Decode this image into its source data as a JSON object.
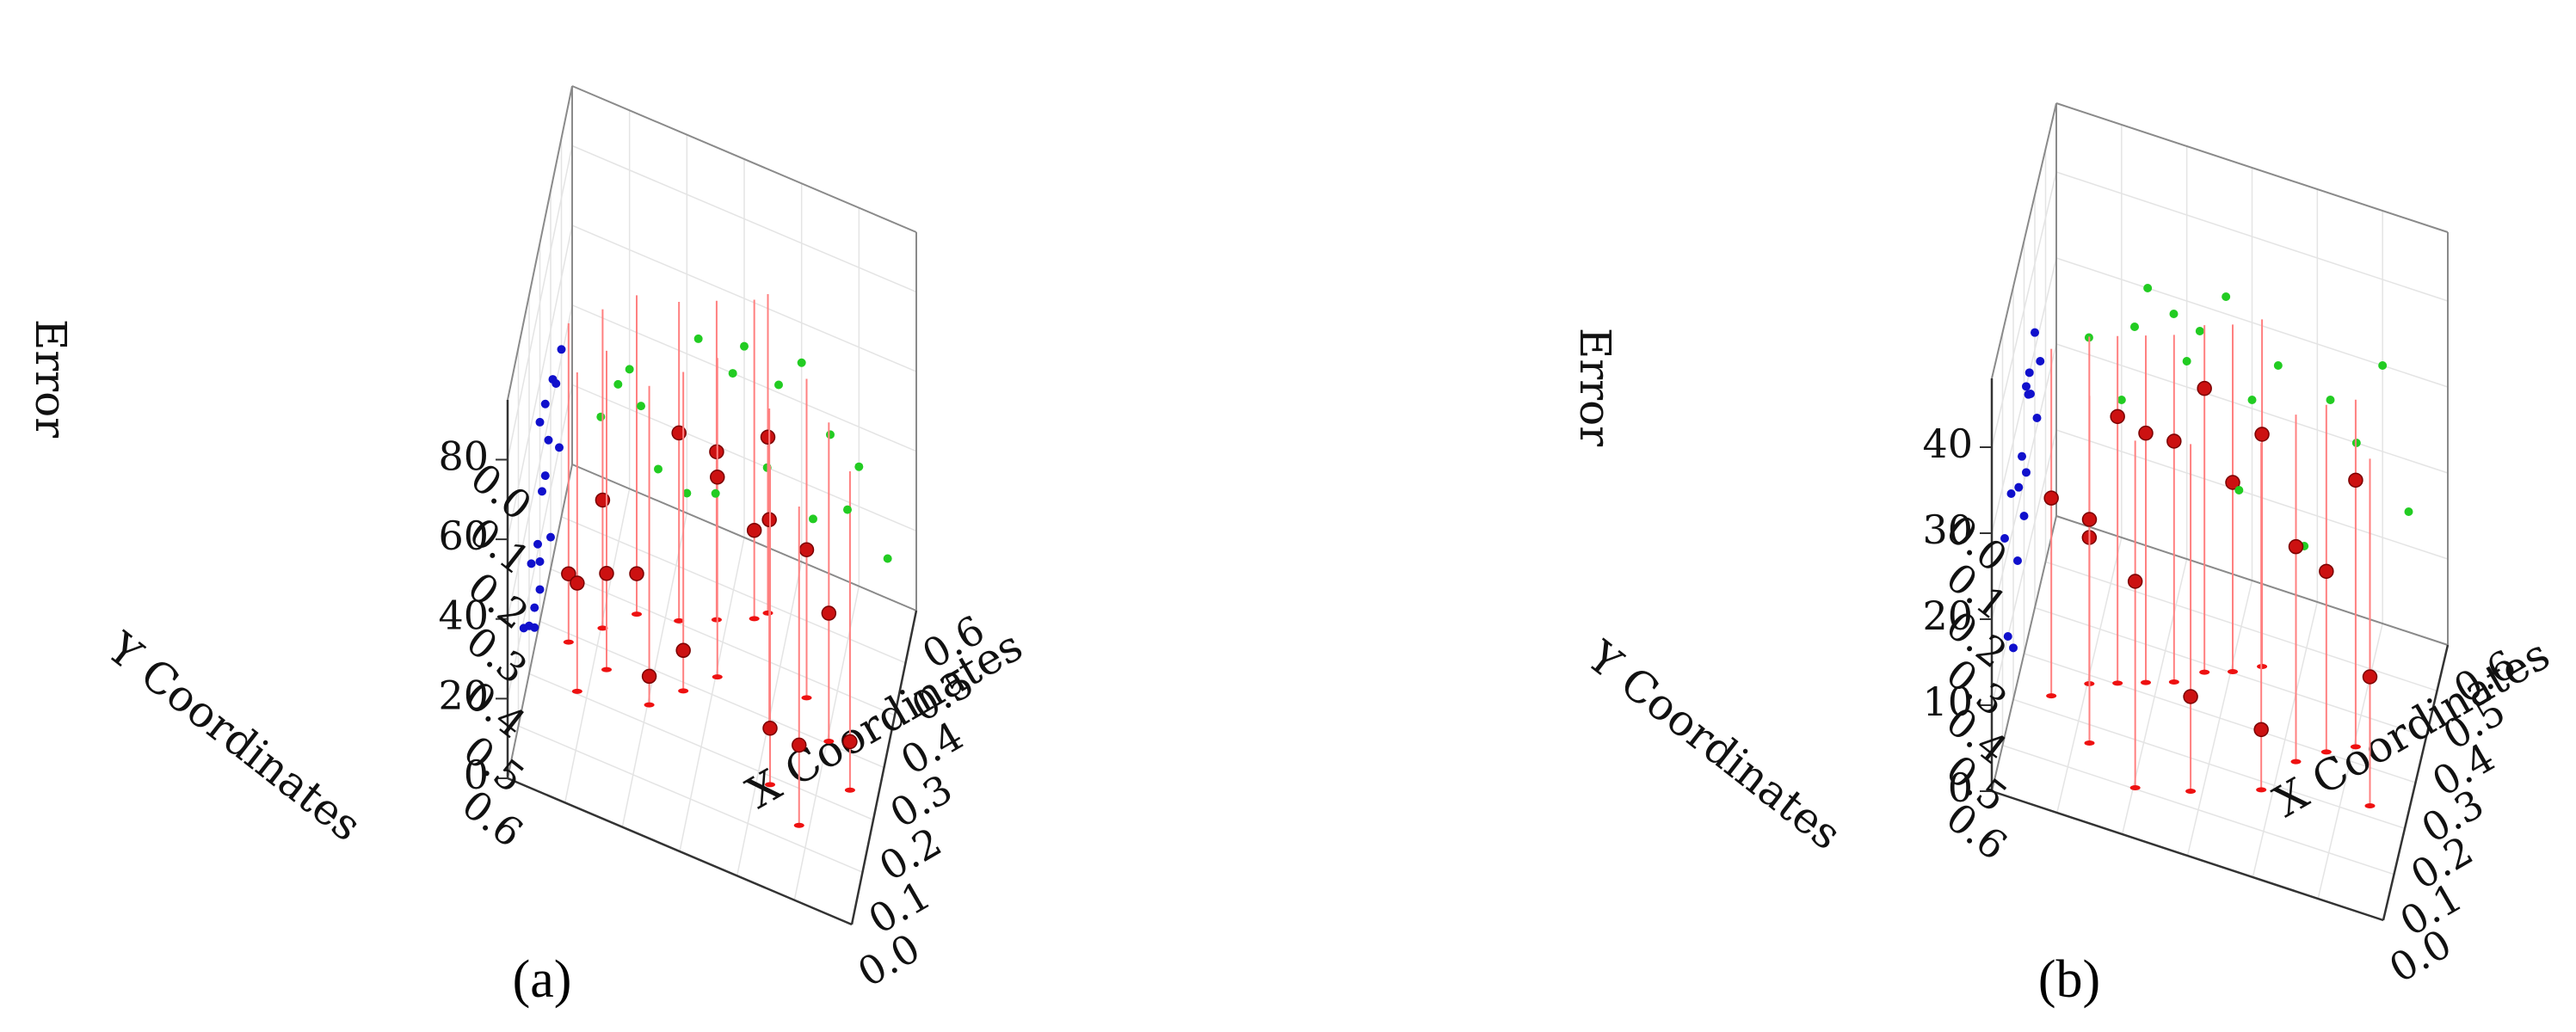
{
  "figure": {
    "panels": [
      {
        "label": "(a)",
        "letter": "a"
      },
      {
        "label": "(b)",
        "letter": "b"
      }
    ]
  },
  "chart_data": [
    {
      "type": "scatter",
      "subtype": "3d-scatter-with-droplines",
      "panel": "a",
      "xlabel": "X Coordinates",
      "ylabel": "Y Coordinates",
      "zlabel": "Error",
      "xlim": [
        0,
        0.6
      ],
      "ylim": [
        0,
        0.6
      ],
      "zlim": [
        0,
        95
      ],
      "x_ticks": [
        "0.0",
        "0.1",
        "0.2",
        "0.3",
        "0.4",
        "0.5",
        "0.6"
      ],
      "y_ticks": [
        "0.0",
        "0.1",
        "0.2",
        "0.3",
        "0.4",
        "0.5",
        "0.6"
      ],
      "z_ticks": [
        "0",
        "20",
        "40",
        "60",
        "80"
      ],
      "grid": true,
      "colors": {
        "yz_wall_projection": "#1010cc",
        "xz_wall_projection": "#22cc22",
        "data_point": "#cc1111",
        "dropline": "#ff8080",
        "floor_mark": "#ee1111"
      },
      "series": [
        {
          "points": [
            {
              "x": 0.05,
              "y": 0.3,
              "z": 15
            },
            {
              "x": 0.1,
              "y": 0.25,
              "z": 30
            },
            {
              "x": 0.15,
              "y": 0.2,
              "z": 8
            },
            {
              "x": 0.22,
              "y": 0.18,
              "z": 45
            },
            {
              "x": 0.28,
              "y": 0.15,
              "z": 40
            },
            {
              "x": 0.34,
              "y": 0.12,
              "z": 20
            },
            {
              "x": 0.36,
              "y": 0.1,
              "z": 42
            },
            {
              "x": 0.08,
              "y": 0.38,
              "z": 25
            },
            {
              "x": 0.12,
              "y": 0.32,
              "z": 22
            },
            {
              "x": 0.3,
              "y": 0.25,
              "z": 48
            },
            {
              "x": 0.4,
              "y": 0.3,
              "z": 50
            },
            {
              "x": 0.45,
              "y": 0.22,
              "z": 35
            },
            {
              "x": 0.5,
              "y": 0.28,
              "z": 30
            },
            {
              "x": 0.42,
              "y": 0.4,
              "z": 12
            },
            {
              "x": 0.2,
              "y": 0.35,
              "z": 5
            },
            {
              "x": 0.25,
              "y": 0.3,
              "z": 8
            },
            {
              "x": 0.55,
              "y": 0.35,
              "z": 10
            },
            {
              "x": 0.48,
              "y": 0.45,
              "z": 18
            }
          ]
        }
      ]
    },
    {
      "type": "scatter",
      "subtype": "3d-scatter-with-droplines",
      "panel": "b",
      "xlabel": "X Coordinates",
      "ylabel": "Y Coordinates",
      "zlabel": "Error",
      "xlim": [
        0,
        0.6
      ],
      "ylim": [
        0,
        0.6
      ],
      "zlim": [
        0,
        48
      ],
      "x_ticks": [
        "0.0",
        "0.1",
        "0.2",
        "0.3",
        "0.4",
        "0.5",
        "0.6"
      ],
      "y_ticks": [
        "0.0",
        "0.1",
        "0.2",
        "0.3",
        "0.4",
        "0.5",
        "0.6"
      ],
      "z_ticks": [
        "0",
        "10",
        "20",
        "30",
        "40"
      ],
      "grid": true,
      "colors": {
        "yz_wall_projection": "#1010cc",
        "xz_wall_projection": "#22cc22",
        "data_point": "#cc1111",
        "dropline": "#ff8080",
        "floor_mark": "#ee1111"
      },
      "series": [
        {
          "points": [
            {
              "x": 0.05,
              "y": 0.35,
              "z": 22
            },
            {
              "x": 0.1,
              "y": 0.3,
              "z": 16
            },
            {
              "x": 0.14,
              "y": 0.28,
              "z": 30
            },
            {
              "x": 0.18,
              "y": 0.26,
              "z": 28
            },
            {
              "x": 0.22,
              "y": 0.24,
              "z": 27
            },
            {
              "x": 0.26,
              "y": 0.2,
              "z": 32
            },
            {
              "x": 0.3,
              "y": 0.18,
              "z": 21
            },
            {
              "x": 0.34,
              "y": 0.15,
              "z": 26
            },
            {
              "x": 0.38,
              "y": 0.4,
              "z": 6
            },
            {
              "x": 0.42,
              "y": 0.32,
              "z": 24
            },
            {
              "x": 0.46,
              "y": 0.28,
              "z": 20
            },
            {
              "x": 0.5,
              "y": 0.25,
              "z": 30
            },
            {
              "x": 0.54,
              "y": 0.36,
              "z": 14
            },
            {
              "x": 0.12,
              "y": 0.42,
              "z": 25
            },
            {
              "x": 0.2,
              "y": 0.48,
              "z": 23
            },
            {
              "x": 0.28,
              "y": 0.45,
              "z": 10
            }
          ]
        }
      ]
    }
  ]
}
